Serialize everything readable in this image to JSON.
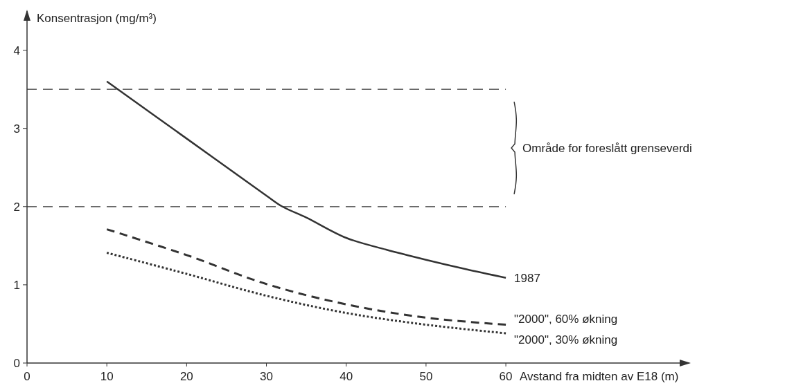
{
  "chart_data": {
    "type": "line",
    "ylabel": "Konsentrasjon (mg/m³)",
    "xlabel": "Avstand fra midten av E18 (m)",
    "xlim": [
      0,
      83
    ],
    "xticks": [
      0,
      10,
      20,
      30,
      40,
      50,
      60
    ],
    "ylim": [
      0,
      4.5
    ],
    "yticks": [
      0,
      1,
      2,
      3,
      4
    ],
    "series": [
      {
        "name": "1987",
        "color": "#333333",
        "line_style": "solid",
        "x": [
          10,
          20,
          30,
          32,
          35,
          40,
          45,
          50,
          55,
          60
        ],
        "values": [
          3.6,
          2.87,
          2.14,
          2.0,
          1.86,
          1.6,
          1.45,
          1.32,
          1.2,
          1.09
        ]
      },
      {
        "name": "\"2000\", 60% økning",
        "color": "#333333",
        "line_style": "dashed",
        "x": [
          10,
          20,
          30,
          40,
          50,
          60
        ],
        "values": [
          1.71,
          1.38,
          1.01,
          0.75,
          0.58,
          0.49
        ]
      },
      {
        "name": "\"2000\", 30% økning",
        "color": "#333333",
        "line_style": "dotted",
        "x": [
          10,
          20,
          30,
          40,
          50,
          60
        ],
        "values": [
          1.41,
          1.14,
          0.86,
          0.64,
          0.49,
          0.38
        ]
      }
    ],
    "ref_lines": [
      {
        "axis": "y",
        "value": 3.5,
        "line_style": "dashed",
        "color": "#333333"
      },
      {
        "axis": "y",
        "value": 2,
        "line_style": "dashed",
        "color": "#333333"
      }
    ],
    "annotations": [
      "Område for foreslått grenseverdi"
    ],
    "grid": false,
    "marker": "none"
  }
}
